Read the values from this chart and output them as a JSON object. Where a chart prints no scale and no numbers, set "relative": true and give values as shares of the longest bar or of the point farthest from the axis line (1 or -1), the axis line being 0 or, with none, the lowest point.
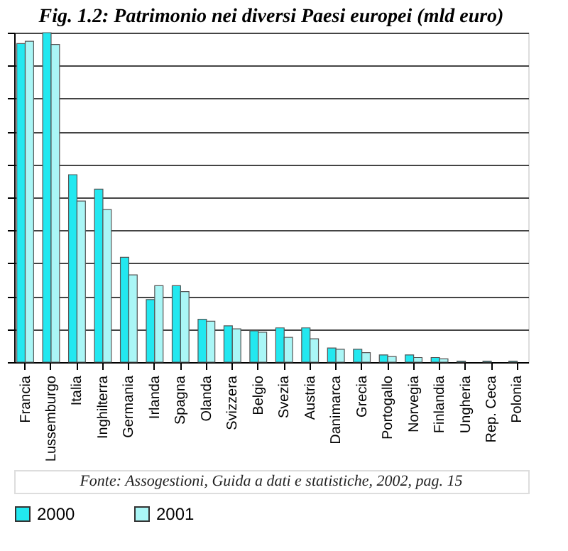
{
  "chart_data": {
    "type": "bar",
    "title": "Fig. 1.2: Patrimonio nei diversi Paesi europei (mld euro)",
    "relative": true,
    "grid": "y",
    "legend": "bottom",
    "categories": [
      "Francia",
      "Lussemburgo",
      "Italia",
      "Inghilterra",
      "Germania",
      "Irlanda",
      "Spagna",
      "Olanda",
      "Svizzera",
      "Belgio",
      "Svezia",
      "Austria",
      "Danimarca",
      "Grecia",
      "Portogallo",
      "Norvegia",
      "Finlandia",
      "Ungheria",
      "Rep. Ceca",
      "Polonia"
    ],
    "series": [
      {
        "name": "2000",
        "color": "#22e8f0",
        "values": [
          0.967,
          1,
          0.569,
          0.525,
          0.318,
          0.19,
          0.232,
          0.13,
          0.11,
          0.095,
          0.104,
          0.104,
          0.043,
          0.039,
          0.022,
          0.022,
          0.014,
          0.003,
          0.003,
          0.003
        ]
      },
      {
        "name": "2001",
        "color": "#aaf6f6",
        "values": [
          0.974,
          0.964,
          0.489,
          0.463,
          0.265,
          0.232,
          0.214,
          0.124,
          0.101,
          0.091,
          0.075,
          0.071,
          0.039,
          0.029,
          0.017,
          0.014,
          0.01,
          null,
          null,
          null
        ]
      }
    ],
    "annotations": [
      "Fonte: Assogestioni, Guida a dati e statistiche, 2002, pag. 15"
    ]
  }
}
